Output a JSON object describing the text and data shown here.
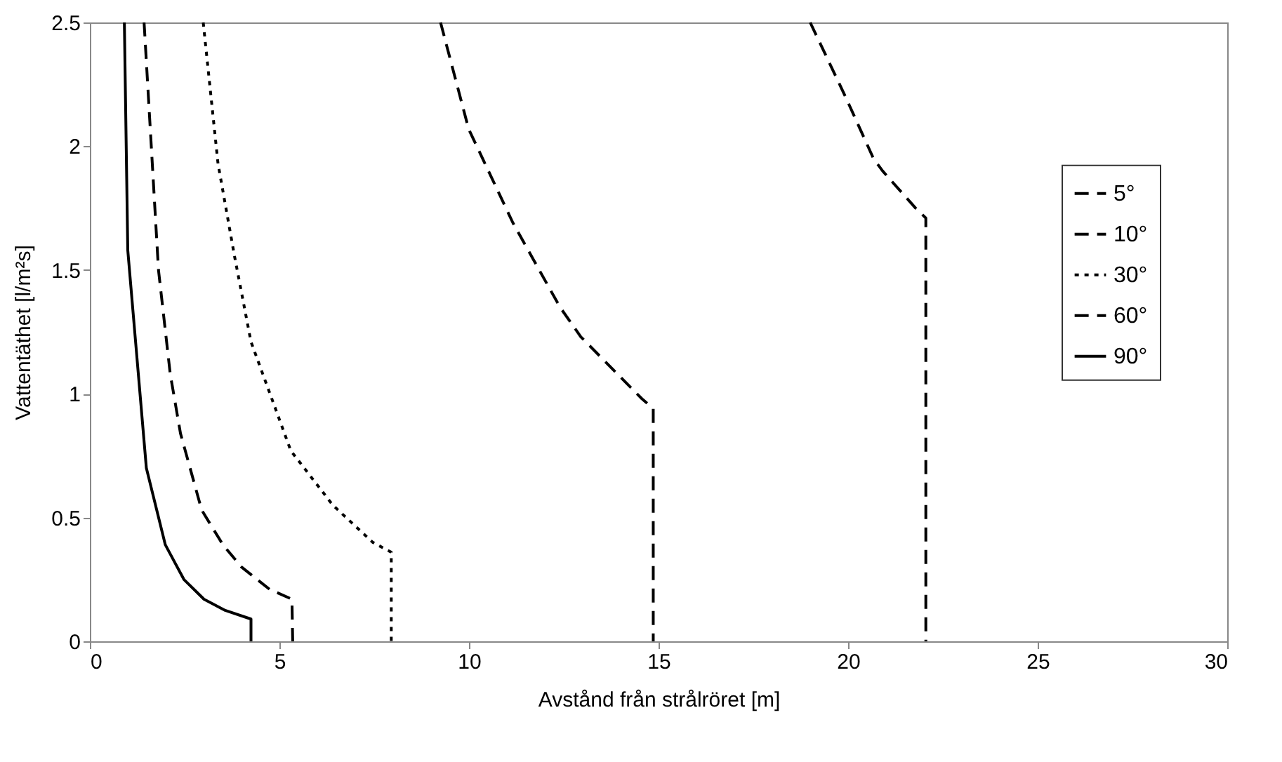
{
  "chart_data": {
    "type": "line",
    "xlabel": "Avstånd från strålröret [m]",
    "ylabel": "Vattentäthet [l/m²s]",
    "xlim": [
      0,
      30
    ],
    "xticks": [
      0,
      5,
      10,
      15,
      20,
      25,
      30
    ],
    "ylim": [
      0,
      2.5
    ],
    "yticks": [
      0,
      0.5,
      1,
      1.5,
      2,
      2.5
    ],
    "grid": false,
    "legend": "right",
    "marker": "none",
    "series": [
      {
        "name": "5°",
        "color": "#000000",
        "line_style": "dashed",
        "x": [
          19.0,
          19.93,
          20.67,
          20.91,
          21.78,
          22.05,
          22.05
        ],
        "values": [
          2.5,
          2.2,
          1.95,
          1.9,
          1.75,
          1.71,
          0
        ]
      },
      {
        "name": "10°",
        "color": "#000000",
        "line_style": "dashed",
        "x": [
          9.25,
          9.99,
          11.16,
          12.4,
          12.95,
          14.56,
          14.86,
          14.86
        ],
        "values": [
          2.5,
          2.07,
          1.69,
          1.35,
          1.23,
          0.98,
          0.94,
          0
        ]
      },
      {
        "name": "30°",
        "color": "#000000",
        "line_style": "dotted",
        "x": [
          2.99,
          3.38,
          3.81,
          4.25,
          5.3,
          6.41,
          7.46,
          7.95,
          7.95
        ],
        "values": [
          2.5,
          1.93,
          1.56,
          1.21,
          0.77,
          0.55,
          0.4,
          0.36,
          0
        ]
      },
      {
        "name": "60°",
        "color": "#000000",
        "line_style": "dashed",
        "x": [
          1.43,
          1.81,
          2.12,
          2.39,
          2.95,
          3.51,
          4.0,
          4.74,
          5.33,
          5.35
        ],
        "values": [
          2.5,
          1.5,
          1.08,
          0.84,
          0.53,
          0.39,
          0.3,
          0.21,
          0.17,
          0
        ]
      },
      {
        "name": "90°",
        "color": "#000000",
        "line_style": "solid",
        "x": [
          0.91,
          1.0,
          1.49,
          1.99,
          2.48,
          3.01,
          3.57,
          4.25,
          4.25
        ],
        "values": [
          2.5,
          1.58,
          0.7,
          0.39,
          0.25,
          0.17,
          0.125,
          0.09,
          0
        ]
      }
    ]
  }
}
